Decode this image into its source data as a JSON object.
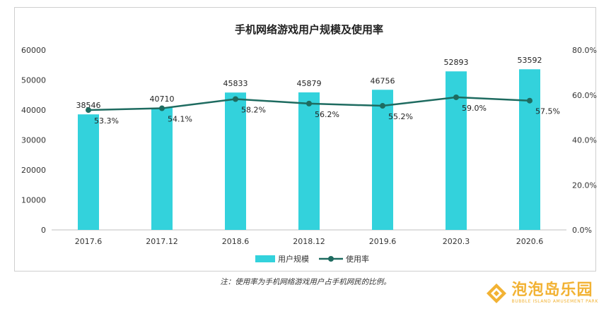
{
  "chart_data": {
    "type": "bar",
    "title": "手机网络游戏用户规模及使用率",
    "categories": [
      "2017.6",
      "2017.12",
      "2018.6",
      "2018.12",
      "2019.6",
      "2020.3",
      "2020.6"
    ],
    "series": [
      {
        "name": "用户规模",
        "type": "bar",
        "axis": "left",
        "color": "#33d2dc",
        "values": [
          38546,
          40710,
          45833,
          45879,
          46756,
          52893,
          53592
        ],
        "labels": [
          "38546",
          "40710",
          "45833",
          "45879",
          "46756",
          "52893",
          "53592"
        ]
      },
      {
        "name": "使用率",
        "type": "line",
        "axis": "right",
        "color": "#1e6b60",
        "values": [
          53.3,
          54.1,
          58.2,
          56.2,
          55.2,
          59.0,
          57.5
        ],
        "labels": [
          "53.3%",
          "54.1%",
          "58.2%",
          "56.2%",
          "55.2%",
          "59.0%",
          "57.5%"
        ]
      }
    ],
    "y_left": {
      "min": 0,
      "max": 60000,
      "ticks": [
        "0",
        "10000",
        "20000",
        "30000",
        "40000",
        "50000",
        "60000"
      ]
    },
    "y_right": {
      "min": 0,
      "max": 80,
      "ticks": [
        "0.0%",
        "20.0%",
        "40.0%",
        "60.0%",
        "80.0%"
      ]
    },
    "grid": false,
    "legend_position": "bottom"
  },
  "note": "注：使用率为手机网络游戏用户占手机网民的比例。",
  "watermark": {
    "name": "泡泡岛乐园",
    "subtitle": "BUBBLE ISLAND AMUSEMENT PARK"
  }
}
